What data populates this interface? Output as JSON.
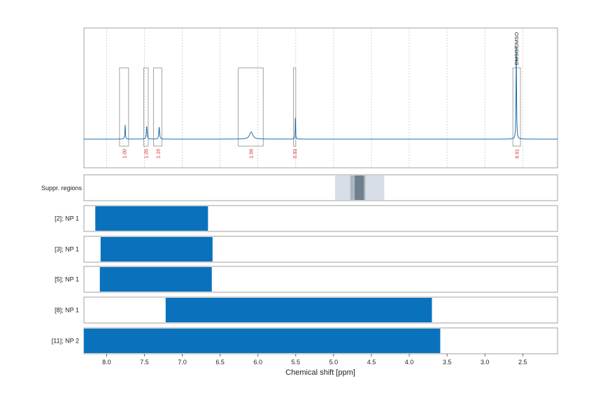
{
  "chart_data": {
    "type": "line",
    "xlabel": "Chemical shift [ppm]",
    "xlim": [
      8.3,
      2.04
    ],
    "x_ticks": [
      "8.0",
      "7.5",
      "7.0",
      "6.5",
      "6.0",
      "5.5",
      "5.0",
      "4.5",
      "4.0",
      "3.5",
      "3.0",
      "2.5"
    ],
    "colors": {
      "spectrum": "#1a6fb0",
      "bar": "#0a72bd",
      "integral_label": "#d62a2a",
      "box": "#999999",
      "grid": "#c8c8c8",
      "supp_light": "#d7dee5",
      "supp_mid": "#aab6c1",
      "supp_dark": "#6e7f8d"
    },
    "spectrum": {
      "baseline": 0.0,
      "peaks": [
        {
          "ppm": 7.755,
          "height": 0.2,
          "width": 0.004
        },
        {
          "ppm": 7.47,
          "height": 0.18,
          "width": 0.006
        },
        {
          "ppm": 7.305,
          "height": 0.17,
          "width": 0.006
        },
        {
          "ppm": 6.09,
          "height": 0.1,
          "width": 0.025
        },
        {
          "ppm": 5.505,
          "height": 0.34,
          "width": 0.003
        },
        {
          "ppm": 2.585,
          "height": 1.3,
          "width": 0.004
        }
      ],
      "ylim": [
        -0.4,
        1.55
      ]
    },
    "integrals": [
      {
        "x0": 7.83,
        "x1": 7.71,
        "label": "1.00"
      },
      {
        "x0": 7.51,
        "x1": 7.45,
        "label": "1.05"
      },
      {
        "x0": 7.38,
        "x1": 7.27,
        "label": "1.16"
      },
      {
        "x0": 6.26,
        "x1": 5.93,
        "label": "1.56"
      },
      {
        "x0": 5.53,
        "x1": 5.5,
        "label": "0.93"
      },
      {
        "x0": 2.63,
        "x1": 2.53,
        "label": "6.91"
      }
    ],
    "annotations": [
      {
        "ppm": 2.585,
        "text": "DMSO/DMSO"
      }
    ],
    "suppression_label": "Suppr. regions",
    "suppression_regions": [
      {
        "x0": 4.98,
        "x1": 4.33,
        "level": "light"
      },
      {
        "x0": 4.78,
        "x1": 4.58,
        "level": "mid"
      },
      {
        "x0": 4.72,
        "x1": 4.6,
        "level": "dark"
      }
    ],
    "series": [
      {
        "name": "[2]; NP 1",
        "x0": 8.15,
        "x1": 6.66
      },
      {
        "name": "[3]; NP 1",
        "x0": 8.08,
        "x1": 6.6
      },
      {
        "name": "[5]; NP 1",
        "x0": 8.09,
        "x1": 6.61
      },
      {
        "name": "[8]; NP 1",
        "x0": 7.22,
        "x1": 3.7
      },
      {
        "name": "[11]; NP 2",
        "x0": 8.3,
        "x1": 3.59
      }
    ]
  }
}
